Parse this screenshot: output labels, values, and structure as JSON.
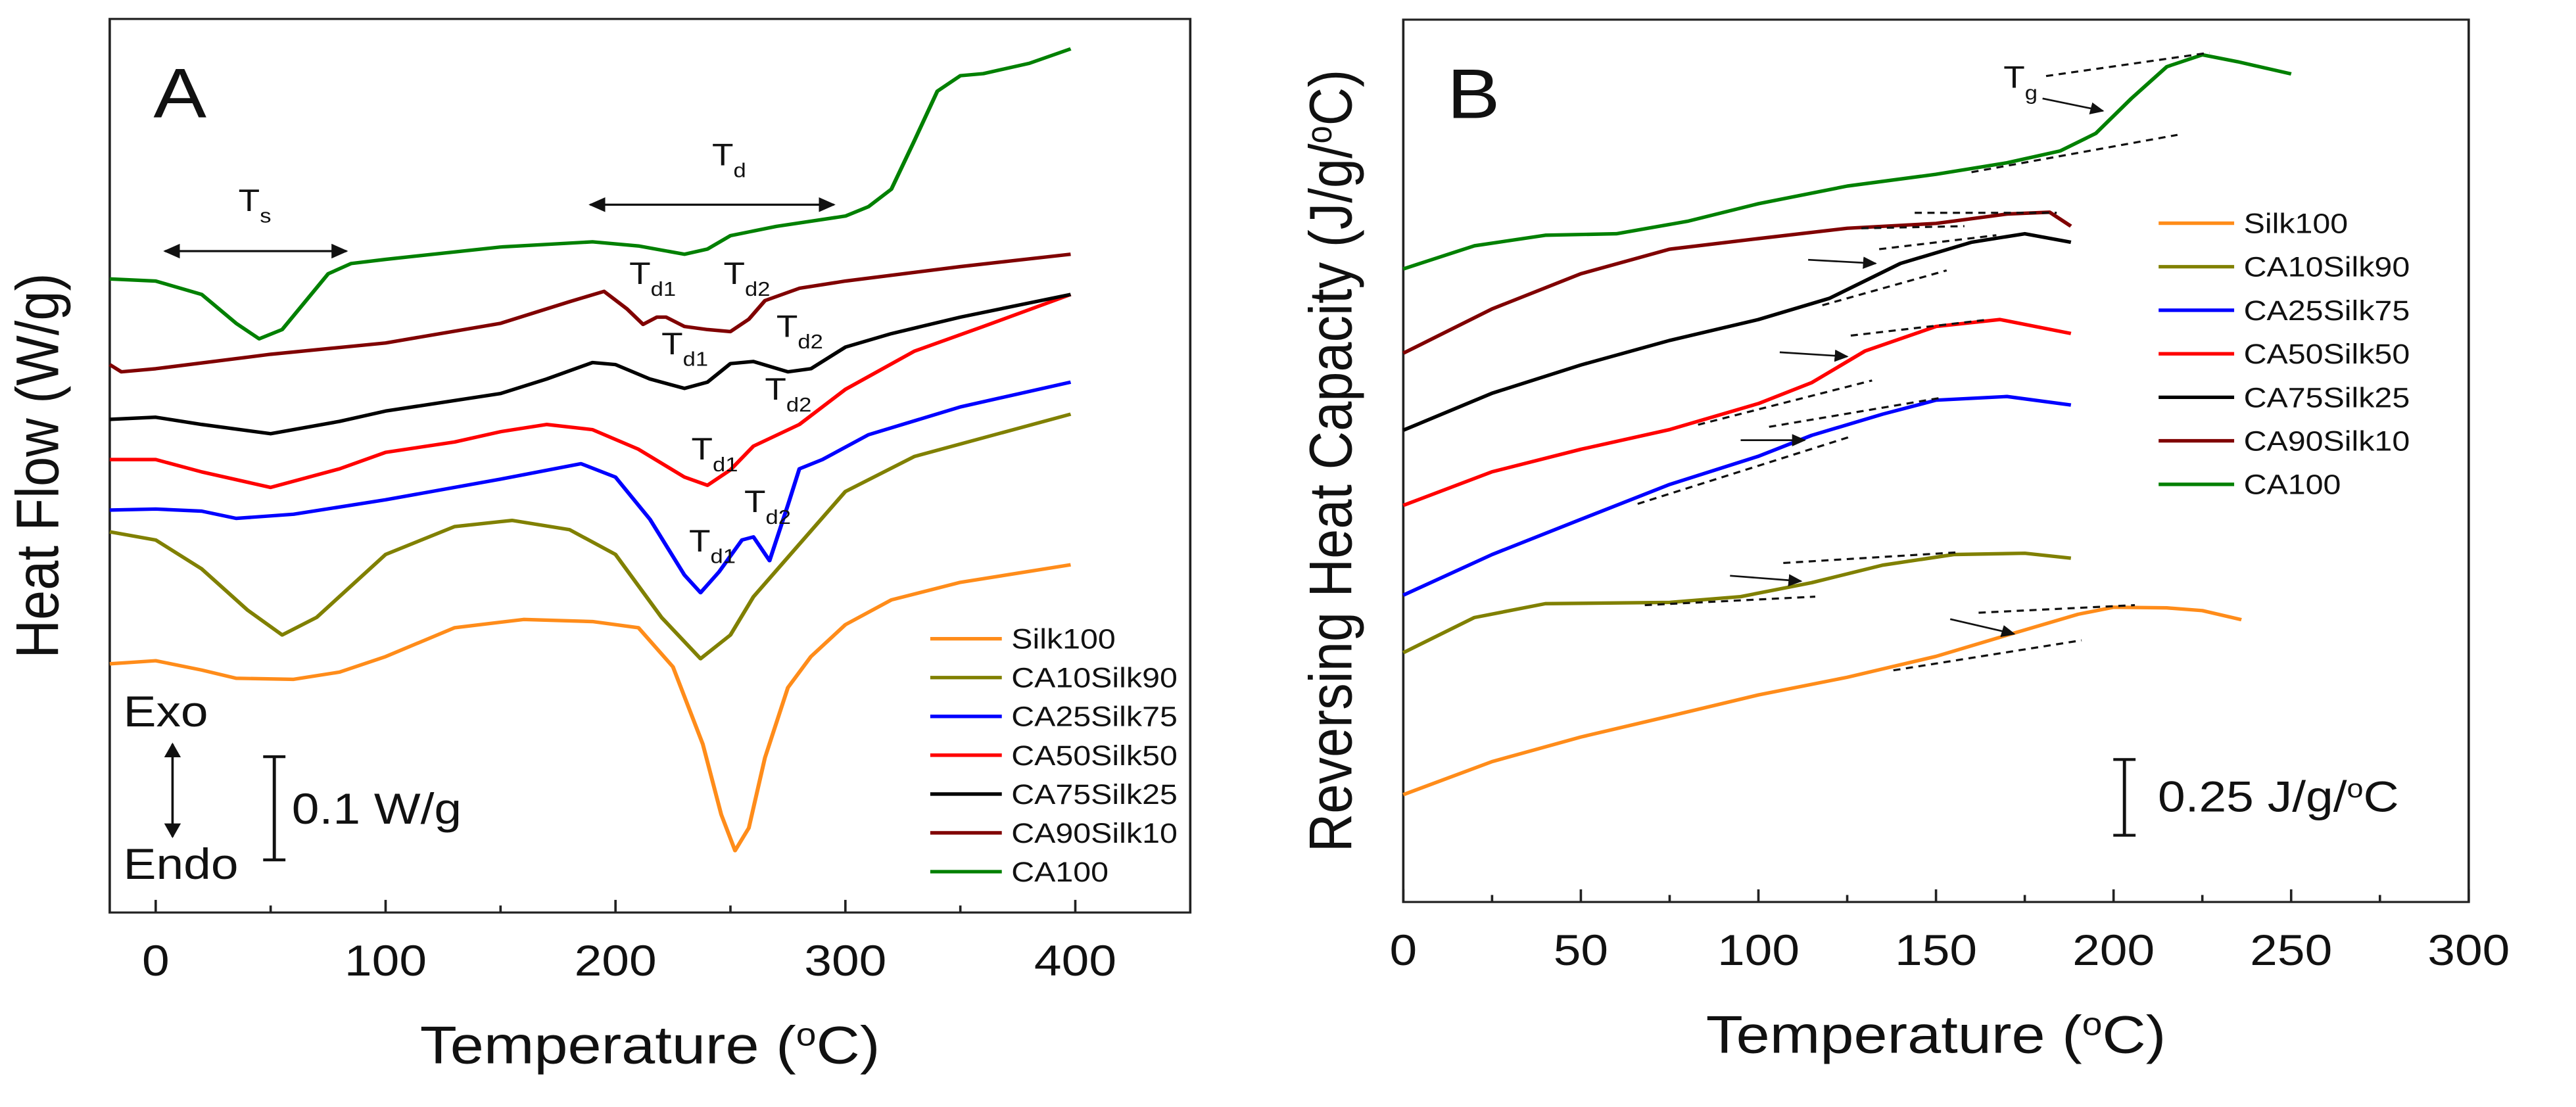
{
  "chart_data": [
    {
      "panel": "A",
      "type": "line",
      "panel_letter": "A",
      "xlabel": {
        "pre": "Temperature (",
        "sup": "o",
        "post": "C)"
      },
      "ylabel": "Heat Flow (W/g)",
      "xlim": [
        -20,
        450
      ],
      "ylim": [
        0,
        0.866
      ],
      "xticks": [
        0,
        100,
        200,
        300,
        400
      ],
      "xticks_minor": [
        50,
        150,
        250,
        350
      ],
      "grid": false,
      "legend_placement": "bottom-right",
      "scale_bar": {
        "label": "0.1 W/g",
        "value": 0.1
      },
      "exo_label": "Exo",
      "endo_label": "Endo",
      "series": [
        {
          "name": "Silk100",
          "color": "#ff8c1a",
          "x": [
            -20,
            0,
            20,
            35,
            60,
            80,
            100,
            130,
            160,
            190,
            210,
            225,
            238,
            246,
            252,
            258,
            265,
            275,
            285,
            300,
            320,
            350,
            398
          ],
          "y": [
            0.241,
            0.244,
            0.235,
            0.227,
            0.226,
            0.233,
            0.248,
            0.276,
            0.284,
            0.282,
            0.276,
            0.238,
            0.163,
            0.095,
            0.06,
            0.082,
            0.15,
            0.218,
            0.248,
            0.279,
            0.303,
            0.32,
            0.337
          ]
        },
        {
          "name": "CA10Silk90",
          "color": "#808000",
          "x": [
            -20,
            0,
            20,
            40,
            55,
            70,
            100,
            130,
            155,
            180,
            200,
            220,
            237,
            250,
            260,
            280,
            300,
            330,
            398
          ],
          "y": [
            0.369,
            0.361,
            0.333,
            0.293,
            0.269,
            0.286,
            0.347,
            0.374,
            0.38,
            0.371,
            0.347,
            0.286,
            0.246,
            0.269,
            0.306,
            0.357,
            0.408,
            0.442,
            0.483
          ]
        },
        {
          "name": "CA25Silk75",
          "color": "#0000ff",
          "x": [
            -20,
            0,
            20,
            35,
            60,
            100,
            150,
            185,
            200,
            215,
            230,
            237,
            245,
            255,
            260,
            267,
            275,
            280,
            290,
            310,
            350,
            398
          ],
          "y": [
            0.39,
            0.391,
            0.389,
            0.382,
            0.386,
            0.4,
            0.42,
            0.435,
            0.422,
            0.381,
            0.327,
            0.31,
            0.33,
            0.361,
            0.364,
            0.341,
            0.395,
            0.43,
            0.439,
            0.463,
            0.49,
            0.514
          ]
        },
        {
          "name": "CA50Silk50",
          "color": "#ff0000",
          "x": [
            -20,
            0,
            20,
            50,
            80,
            100,
            130,
            150,
            170,
            190,
            210,
            230,
            240,
            250,
            260,
            280,
            300,
            330,
            360,
            398
          ],
          "y": [
            0.439,
            0.439,
            0.427,
            0.412,
            0.43,
            0.446,
            0.456,
            0.466,
            0.473,
            0.468,
            0.449,
            0.422,
            0.414,
            0.429,
            0.452,
            0.473,
            0.507,
            0.544,
            0.568,
            0.599
          ]
        },
        {
          "name": "CA75Silk25",
          "color": "#000000",
          "x": [
            -20,
            0,
            20,
            50,
            80,
            100,
            150,
            170,
            190,
            200,
            215,
            230,
            240,
            250,
            260,
            275,
            285,
            300,
            320,
            350,
            398
          ],
          "y": [
            0.478,
            0.48,
            0.473,
            0.464,
            0.476,
            0.486,
            0.503,
            0.517,
            0.533,
            0.531,
            0.517,
            0.508,
            0.514,
            0.532,
            0.534,
            0.524,
            0.527,
            0.548,
            0.561,
            0.577,
            0.599
          ]
        },
        {
          "name": "CA90Silk10",
          "color": "#800000",
          "x": [
            -20,
            -15,
            0,
            50,
            100,
            150,
            180,
            195,
            205,
            212,
            218,
            222,
            230,
            240,
            250,
            258,
            265,
            280,
            300,
            350,
            398
          ],
          "y": [
            0.531,
            0.524,
            0.527,
            0.541,
            0.552,
            0.571,
            0.592,
            0.602,
            0.585,
            0.57,
            0.577,
            0.577,
            0.568,
            0.565,
            0.563,
            0.575,
            0.593,
            0.605,
            0.612,
            0.626,
            0.638
          ]
        },
        {
          "name": "CA100",
          "color": "#008000",
          "x": [
            -20,
            0,
            20,
            35,
            45,
            55,
            65,
            75,
            85,
            100,
            150,
            190,
            210,
            230,
            240,
            250,
            270,
            300,
            310,
            320,
            330,
            340,
            350,
            360,
            380,
            398
          ],
          "y": [
            0.614,
            0.612,
            0.599,
            0.571,
            0.556,
            0.565,
            0.592,
            0.619,
            0.629,
            0.633,
            0.645,
            0.65,
            0.646,
            0.638,
            0.643,
            0.656,
            0.665,
            0.675,
            0.684,
            0.701,
            0.748,
            0.796,
            0.811,
            0.813,
            0.823,
            0.837
          ]
        }
      ],
      "range_arrows": [
        {
          "label": "T",
          "sub": "s",
          "x": [
            4,
            83
          ],
          "y": 0.641,
          "label_x": 36,
          "label_y": 0.68
        },
        {
          "label": "T",
          "sub": "d",
          "x": [
            189,
            295
          ],
          "y": 0.686,
          "label_x": 242,
          "label_y": 0.724
        }
      ],
      "annotations": [
        {
          "label": "T",
          "sub": "d1",
          "x": 206,
          "y": 0.609
        },
        {
          "label": "T",
          "sub": "d2",
          "x": 247,
          "y": 0.609
        },
        {
          "label": "T",
          "sub": "d1",
          "x": 220,
          "y": 0.541
        },
        {
          "label": "T",
          "sub": "d2",
          "x": 270,
          "y": 0.558
        },
        {
          "label": "T",
          "sub": "d2",
          "x": 265,
          "y": 0.497
        },
        {
          "label": "T",
          "sub": "d1",
          "x": 233,
          "y": 0.439
        },
        {
          "label": "T",
          "sub": "d2",
          "x": 256,
          "y": 0.388
        },
        {
          "label": "T",
          "sub": "d1",
          "x": 232,
          "y": 0.35
        }
      ]
    },
    {
      "panel": "B",
      "type": "line",
      "panel_letter": "B",
      "xlabel": {
        "pre": "Temperature (",
        "sup": "o",
        "post": "C)"
      },
      "ylabel": {
        "pre": "Reversing Heat Capacity (J/g/",
        "sup": "o",
        "post": "C)"
      },
      "xlim": [
        0,
        300
      ],
      "ylim": [
        0,
        2.91
      ],
      "xticks": [
        0,
        50,
        100,
        150,
        200,
        250,
        300
      ],
      "xticks_minor": [
        25,
        75,
        125,
        175,
        225,
        275
      ],
      "grid": false,
      "legend_placement": "top-right",
      "scale_bar": {
        "label_pre": "0.25 J/g/",
        "label_sup": "o",
        "label_post": "C",
        "value": 0.25
      },
      "series": [
        {
          "name": "Silk100",
          "color": "#ff8c1a",
          "x": [
            0,
            25,
            50,
            75,
            100,
            125,
            150,
            170,
            190,
            200,
            215,
            225,
            236
          ],
          "y": [
            0.354,
            0.463,
            0.544,
            0.613,
            0.683,
            0.741,
            0.81,
            0.88,
            0.949,
            0.972,
            0.97,
            0.961,
            0.931
          ]
        },
        {
          "name": "CA10Silk90",
          "color": "#808000",
          "x": [
            0,
            20,
            40,
            75,
            95,
            115,
            135,
            155,
            175,
            188
          ],
          "y": [
            0.822,
            0.938,
            0.984,
            0.988,
            1.007,
            1.053,
            1.111,
            1.146,
            1.15,
            1.134
          ]
        },
        {
          "name": "CA25Silk75",
          "color": "#0000ff",
          "x": [
            0,
            25,
            50,
            75,
            100,
            115,
            135,
            150,
            170,
            188
          ],
          "y": [
            1.012,
            1.146,
            1.262,
            1.377,
            1.47,
            1.539,
            1.609,
            1.655,
            1.667,
            1.639
          ]
        },
        {
          "name": "CA50Silk50",
          "color": "#ff0000",
          "x": [
            0,
            25,
            50,
            75,
            100,
            115,
            130,
            150,
            168,
            188
          ],
          "y": [
            1.308,
            1.419,
            1.493,
            1.558,
            1.644,
            1.713,
            1.817,
            1.898,
            1.921,
            1.875
          ]
        },
        {
          "name": "CA75Silk25",
          "color": "#000000",
          "x": [
            0,
            25,
            50,
            75,
            100,
            120,
            140,
            160,
            175,
            188
          ],
          "y": [
            1.556,
            1.678,
            1.771,
            1.852,
            1.921,
            1.991,
            2.106,
            2.176,
            2.204,
            2.176
          ]
        },
        {
          "name": "CA90Silk10",
          "color": "#800000",
          "x": [
            0,
            25,
            50,
            75,
            100,
            125,
            150,
            170,
            182,
            188
          ],
          "y": [
            1.81,
            1.956,
            2.072,
            2.153,
            2.188,
            2.222,
            2.238,
            2.269,
            2.275,
            2.229
          ]
        },
        {
          "name": "CA100",
          "color": "#008000",
          "x": [
            0,
            20,
            40,
            60,
            80,
            100,
            125,
            150,
            170,
            185,
            195,
            205,
            215,
            225,
            235,
            250
          ],
          "y": [
            2.088,
            2.164,
            2.199,
            2.204,
            2.245,
            2.303,
            2.361,
            2.4,
            2.438,
            2.477,
            2.535,
            2.65,
            2.755,
            2.794,
            2.771,
            2.731
          ]
        }
      ],
      "tangent_lines": [
        {
          "x": [
            181,
            227
          ],
          "y": [
            2.724,
            2.801
          ]
        },
        {
          "x": [
            160,
            218
          ],
          "y": [
            2.407,
            2.53
          ]
        },
        {
          "x": [
            144,
            184
          ],
          "y": [
            2.273,
            2.273
          ]
        },
        {
          "x": [
            129,
            158
          ],
          "y": [
            2.222,
            2.229
          ]
        },
        {
          "x": [
            134,
            167
          ],
          "y": [
            2.153,
            2.199
          ]
        },
        {
          "x": [
            118,
            153
          ],
          "y": [
            1.968,
            2.083
          ]
        },
        {
          "x": [
            126,
            165
          ],
          "y": [
            1.868,
            1.921
          ]
        },
        {
          "x": [
            83,
            132
          ],
          "y": [
            1.574,
            1.72
          ]
        },
        {
          "x": [
            103,
            151
          ],
          "y": [
            1.567,
            1.662
          ]
        },
        {
          "x": [
            66,
            126
          ],
          "y": [
            1.313,
            1.535
          ]
        },
        {
          "x": [
            107,
            156
          ],
          "y": [
            1.118,
            1.153
          ]
        },
        {
          "x": [
            68,
            116
          ],
          "y": [
            0.979,
            1.007
          ]
        },
        {
          "x": [
            162,
            206
          ],
          "y": [
            0.954,
            0.979
          ]
        },
        {
          "x": [
            138,
            191
          ],
          "y": [
            0.764,
            0.863
          ]
        }
      ],
      "tg_arrows": [
        {
          "x": [
            180,
            197
          ],
          "y": [
            2.65,
            2.609
          ]
        },
        {
          "x": [
            114,
            133
          ],
          "y": [
            2.118,
            2.106
          ]
        },
        {
          "x": [
            106,
            125
          ],
          "y": [
            1.813,
            1.799
          ]
        },
        {
          "x": [
            95,
            113
          ],
          "y": [
            1.523,
            1.523
          ]
        },
        {
          "x": [
            92,
            112
          ],
          "y": [
            1.076,
            1.058
          ]
        },
        {
          "x": [
            154,
            172
          ],
          "y": [
            0.933,
            0.884
          ]
        }
      ],
      "annotations": [
        {
          "label": "T",
          "sub": "g",
          "x": 169,
          "y": 2.685
        }
      ]
    }
  ]
}
